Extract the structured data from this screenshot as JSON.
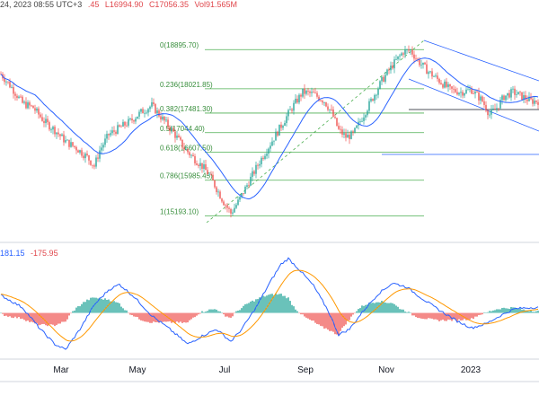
{
  "header": {
    "time": "24, 2023 08:55 UTC+3",
    "ohlc_fragment": ".45",
    "low": "L16994.90",
    "close": "C17056.35",
    "vol": "Vol91.565M"
  },
  "macd_header": {
    "macd_value": "181.15",
    "signal_value": "-175.95"
  },
  "colors": {
    "up": "#26a69a",
    "down": "#ef5350",
    "ma": "#2962ff",
    "fib_line": "#4caf50",
    "fib_label": "#388e3c",
    "trend_dashed": "#4caf50",
    "channel": "#2962ff",
    "macd_line": "#2962ff",
    "signal_line": "#ff9800",
    "hist_up": "#26a69a",
    "hist_down": "#ef5350"
  },
  "chart_data": {
    "type": "candlestick",
    "x_ticks": [
      "Mar",
      "May",
      "Jul",
      "Sep",
      "Nov",
      "2023"
    ],
    "fib_levels": [
      {
        "label": "0(18895.70)",
        "price": 18895.7
      },
      {
        "label": "0.236(18021.85)",
        "price": 18021.85
      },
      {
        "label": "0.382(17481.30)",
        "price": 17481.3
      },
      {
        "label": "0.5(17044.40)",
        "price": 17044.4
      },
      {
        "label": "0.618(16607.50)",
        "price": 16607.5
      },
      {
        "label": "0.786(15985.45)",
        "price": 15985.45
      },
      {
        "label": "1(15193.10)",
        "price": 15193.1
      }
    ],
    "price_path": [
      [
        0,
        18350
      ],
      [
        6,
        18050
      ],
      [
        12,
        17700
      ],
      [
        18,
        17600
      ],
      [
        24,
        17300
      ],
      [
        30,
        17100
      ],
      [
        36,
        16850
      ],
      [
        42,
        16700
      ],
      [
        48,
        16500
      ],
      [
        52,
        16300
      ],
      [
        55,
        16650
      ],
      [
        60,
        17000
      ],
      [
        66,
        17150
      ],
      [
        72,
        17300
      ],
      [
        78,
        17500
      ],
      [
        84,
        17650
      ],
      [
        90,
        17350
      ],
      [
        96,
        17050
      ],
      [
        102,
        16700
      ],
      [
        108,
        16450
      ],
      [
        112,
        16300
      ],
      [
        116,
        16100
      ],
      [
        120,
        15800
      ],
      [
        124,
        15500
      ],
      [
        128,
        15250
      ],
      [
        132,
        15500
      ],
      [
        138,
        15950
      ],
      [
        144,
        16400
      ],
      [
        150,
        16800
      ],
      [
        156,
        17200
      ],
      [
        162,
        17600
      ],
      [
        168,
        17950
      ],
      [
        174,
        17900
      ],
      [
        180,
        17750
      ],
      [
        184,
        17500
      ],
      [
        188,
        17100
      ],
      [
        192,
        16950
      ],
      [
        196,
        17000
      ],
      [
        200,
        17300
      ],
      [
        206,
        17750
      ],
      [
        212,
        18200
      ],
      [
        218,
        18550
      ],
      [
        224,
        18850
      ],
      [
        228,
        18880
      ],
      [
        232,
        18650
      ],
      [
        238,
        18400
      ],
      [
        244,
        18200
      ],
      [
        250,
        18000
      ],
      [
        256,
        17950
      ],
      [
        262,
        18000
      ],
      [
        268,
        17750
      ],
      [
        272,
        17450
      ],
      [
        276,
        17600
      ],
      [
        280,
        17850
      ],
      [
        285,
        17950
      ],
      [
        290,
        17850
      ],
      [
        295,
        17750
      ]
    ],
    "macd_path": [
      [
        0,
        130
      ],
      [
        12,
        40
      ],
      [
        22,
        -120
      ],
      [
        30,
        -230
      ],
      [
        36,
        -270
      ],
      [
        44,
        -120
      ],
      [
        52,
        60
      ],
      [
        60,
        170
      ],
      [
        66,
        210
      ],
      [
        74,
        120
      ],
      [
        84,
        -20
      ],
      [
        94,
        -120
      ],
      [
        104,
        -230
      ],
      [
        112,
        -170
      ],
      [
        120,
        -120
      ],
      [
        128,
        -210
      ],
      [
        134,
        -120
      ],
      [
        142,
        40
      ],
      [
        150,
        230
      ],
      [
        156,
        360
      ],
      [
        160,
        400
      ],
      [
        166,
        320
      ],
      [
        174,
        200
      ],
      [
        182,
        20
      ],
      [
        188,
        -160
      ],
      [
        194,
        -120
      ],
      [
        202,
        20
      ],
      [
        210,
        140
      ],
      [
        218,
        220
      ],
      [
        226,
        190
      ],
      [
        234,
        110
      ],
      [
        244,
        20
      ],
      [
        254,
        -60
      ],
      [
        262,
        -110
      ],
      [
        270,
        -80
      ],
      [
        278,
        -20
      ],
      [
        286,
        30
      ],
      [
        295,
        40
      ]
    ],
    "macd_ylim": [
      -340,
      420
    ],
    "price_ylim": [
      14700,
      19700
    ]
  }
}
